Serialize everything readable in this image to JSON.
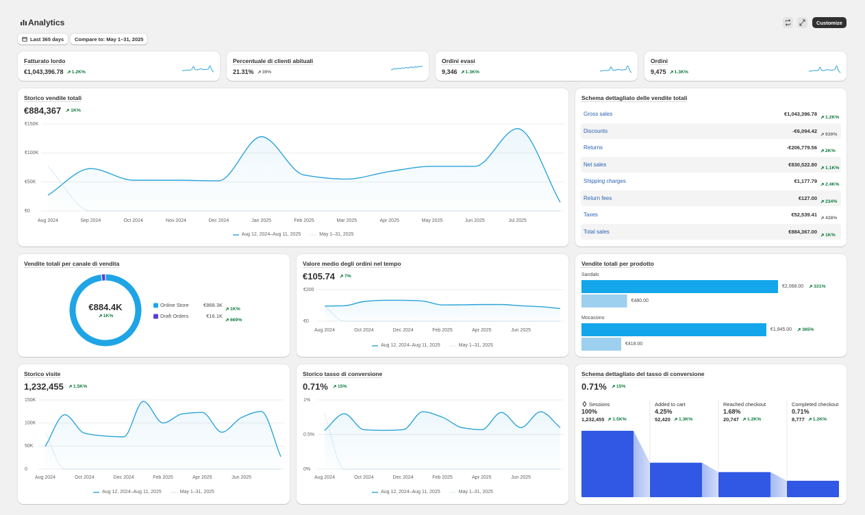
{
  "header": {
    "title": "Analytics",
    "date_range": "Last 365 days",
    "compare": "Compare to: May 1–31, 2025",
    "customize": "Customize"
  },
  "kpis": [
    {
      "title": "Fatturato lordo",
      "value": "€1,043,396.78",
      "change": "1.2K%",
      "change_color": "#0f7b3f",
      "sparkline": [
        3,
        3.1,
        3.3,
        3.4,
        3.3,
        3.5,
        5.4,
        3.6,
        3.5,
        3.8,
        4,
        3.8,
        3.6,
        3.7,
        3.9,
        5.8,
        3.3,
        2.2
      ]
    },
    {
      "title": "Percentuale di clienti abituali",
      "value": "21.31%",
      "change": "39%",
      "change_color": "#6d7175",
      "sparkline": [
        3,
        3.3,
        3.6,
        3.4,
        3.8,
        3.5,
        4,
        3.7,
        4.2,
        3.9,
        4.1,
        4.4,
        4,
        4.6,
        4.2,
        4.8,
        4.5,
        5
      ]
    },
    {
      "title": "Ordini evasi",
      "value": "9,346",
      "change": "1.3K%",
      "change_color": "#0f7b3f",
      "sparkline": [
        2.6,
        2.8,
        3,
        3.1,
        3,
        3.2,
        5,
        3.2,
        3.1,
        3.4,
        3.6,
        3.4,
        3.3,
        3.4,
        3.6,
        5.6,
        3.1,
        1.8
      ]
    },
    {
      "title": "Ordini",
      "value": "9,475",
      "change": "1.3K%",
      "change_color": "#0f7b3f",
      "sparkline": [
        2.6,
        2.8,
        3,
        3.1,
        3,
        3.2,
        5,
        3.2,
        3.1,
        3.4,
        3.6,
        3.4,
        3.3,
        3.4,
        3.6,
        5.8,
        3.1,
        1.8
      ]
    }
  ],
  "sales_history": {
    "type": "line",
    "title": "Storico vendite totali",
    "value": "€884,367",
    "change": "1K%",
    "change_color": "#0f7b3f",
    "categories": [
      "Aug 2024",
      "Sep 2024",
      "Oct 2024",
      "Nov 2024",
      "Dec 2024",
      "Jan 2025",
      "Feb 2025",
      "Mar 2025",
      "Apr 2025",
      "May 2025",
      "Jun 2025",
      "Jul 2025",
      null
    ],
    "series": [
      {
        "name": "Aug 12, 2024–Aug 11, 2025",
        "color": "#2aa3d9",
        "style": "solid",
        "values": [
          27000,
          73000,
          53000,
          53000,
          52000,
          128000,
          62000,
          55000,
          68000,
          77000,
          77000,
          142000,
          15000
        ]
      },
      {
        "name": "May 1–31, 2025",
        "color": "#8fc3e3",
        "style": "dotted",
        "values": [
          77000,
          0,
          0,
          0,
          0,
          0,
          0,
          0,
          0,
          0,
          0,
          0,
          0
        ]
      }
    ],
    "ylim": [
      0,
      150000
    ],
    "yticks": [
      {
        "value": 0,
        "label": "€0"
      },
      {
        "value": 50000,
        "label": "€50K"
      },
      {
        "value": 100000,
        "label": "€100K"
      },
      {
        "value": 150000,
        "label": "€150K"
      }
    ]
  },
  "breakdown": {
    "title": "Schema dettagliato delle vendite totali",
    "rows": [
      {
        "name": "Gross sales",
        "value": "€1,043,396.78",
        "change": "1.2K%",
        "change_color": "#0f7b3f"
      },
      {
        "name": "Discounts",
        "value": "-€6,094.42",
        "change": "939%",
        "change_color": "#6d7175"
      },
      {
        "name": "Returns",
        "value": "-€206,779.56",
        "change": "2K%",
        "change_color": "#0f7b3f"
      },
      {
        "name": "Net sales",
        "value": "€830,522.80",
        "change": "1.1K%",
        "change_color": "#0f7b3f"
      },
      {
        "name": "Shipping charges",
        "value": "€1,177.79",
        "change": "2.4K%",
        "change_color": "#0f7b3f"
      },
      {
        "name": "Return fees",
        "value": "€127.00",
        "change": "234%",
        "change_color": "#0f7b3f"
      },
      {
        "name": "Taxes",
        "value": "€52,539.41",
        "change": "428%",
        "change_color": "#6d7175"
      },
      {
        "name": "Total sales",
        "value": "€884,367.00",
        "change": "1K%",
        "change_color": "#0f7b3f"
      }
    ]
  },
  "channels": {
    "type": "donut",
    "title": "Vendite totali per canale di vendita",
    "total": "€884.4K",
    "change": "1K%",
    "change_color": "#0f7b3f",
    "categories": [
      "Online Store",
      "Draft Orders"
    ],
    "values": [
      868300,
      16100
    ],
    "value_labels": [
      "€868.3K",
      "€16.1K"
    ],
    "changes": [
      "1K%",
      "669%"
    ],
    "change_colors": [
      "#0f7b3f",
      "#0f7b3f"
    ],
    "colors": [
      "#1fa5e6",
      "#5b3fd6"
    ]
  },
  "aov": {
    "type": "line",
    "title": "Valore medio degli ordini nel tempo",
    "value": "€105.74",
    "change": "7%",
    "change_color": "#0f7b3f",
    "categories": [
      "Aug 2024",
      null,
      "Oct 2024",
      null,
      "Dec 2024",
      null,
      "Feb 2025",
      null,
      "Apr 2025",
      null,
      "Jun 2025",
      null,
      null
    ],
    "series": [
      {
        "name": "Aug 12, 2024–Aug 11, 2025",
        "color": "#2aa3d9",
        "style": "solid",
        "values": [
          96,
          98,
          125,
          133,
          133,
          128,
          103,
          104,
          106,
          106,
          98,
          92,
          80
        ]
      },
      {
        "name": "May 1–31, 2025",
        "color": "#8fc3e3",
        "style": "dotted",
        "values": [
          96,
          0,
          0,
          0,
          0,
          0,
          0,
          0,
          0,
          0,
          0,
          0,
          0
        ]
      }
    ],
    "ylim": [
      0,
      200
    ],
    "yticks": [
      {
        "value": 0,
        "label": "€0"
      },
      {
        "value": 200,
        "label": "€200"
      }
    ]
  },
  "products": {
    "type": "bar",
    "title": "Vendite totali per prodotto",
    "categories": [
      "Sandalo",
      "Mocassino"
    ],
    "values": [
      2068,
      1945
    ],
    "value_labels": [
      "€2,068.00",
      "€1,945.00"
    ],
    "changes": [
      "331%",
      "365%"
    ],
    "change_colors": [
      "#0f7b3f",
      "#0f7b3f"
    ],
    "previous_values": [
      480,
      418
    ],
    "previous_value_labels": [
      "€480.00",
      "€418.00"
    ],
    "color": "#13a6ea",
    "previous_color": "#9dd0ef"
  },
  "visits": {
    "type": "line",
    "title": "Storico visite",
    "value": "1,232,455",
    "change": "1.5K%",
    "change_color": "#0f7b3f",
    "categories": [
      "Aug 2024",
      null,
      "Oct 2024",
      null,
      "Dec 2024",
      null,
      "Feb 2025",
      null,
      "Apr 2025",
      null,
      "Jun 2025",
      null,
      null
    ],
    "series": [
      {
        "name": "Aug 12, 2024–Aug 11, 2025",
        "color": "#2aa3d9",
        "style": "solid",
        "values": [
          49000,
          118000,
          78000,
          72000,
          70000,
          147000,
          100000,
          120000,
          123000,
          80000,
          112000,
          125000,
          27000
        ]
      },
      {
        "name": "May 1–31, 2025",
        "color": "#8fc3e3",
        "style": "dotted",
        "values": [
          79000,
          0,
          0,
          0,
          0,
          0,
          0,
          0,
          0,
          0,
          0,
          0,
          0
        ]
      }
    ],
    "ylim": [
      0,
      150000
    ],
    "yticks": [
      0,
      {
        "value": 50000,
        "label": "50K"
      },
      {
        "value": 100000,
        "label": "100K"
      },
      {
        "value": 150000,
        "label": "150K"
      }
    ]
  },
  "conversion": {
    "type": "line",
    "title": "Storico tasso di conversione",
    "value": "0.71%",
    "change": "15%",
    "change_color": "#0f7b3f",
    "categories": [
      "Aug 2024",
      null,
      "Oct 2024",
      null,
      "Dec 2024",
      null,
      "Feb 2025",
      null,
      "Apr 2025",
      null,
      "Jun 2025",
      null,
      null
    ],
    "series": [
      {
        "name": "Aug 12, 2024–Aug 11, 2025",
        "color": "#2aa3d9",
        "style": "solid",
        "values": [
          0.56,
          0.8,
          0.57,
          0.56,
          0.57,
          0.83,
          0.75,
          0.6,
          0.57,
          0.82,
          0.6,
          0.83,
          0.6
        ]
      },
      {
        "name": "May 1–31, 2025",
        "color": "#8fc3e3",
        "style": "dotted",
        "values": [
          0.8,
          0,
          0,
          0,
          0,
          0,
          0,
          0,
          0,
          0,
          0,
          0,
          0
        ]
      }
    ],
    "ylim": [
      0,
      1
    ],
    "yticks": [
      {
        "value": 0,
        "label": "0%"
      },
      {
        "value": 0.5,
        "label": "0.5%"
      },
      {
        "value": 1,
        "label": "1%"
      }
    ]
  },
  "funnel": {
    "type": "funnel",
    "title": "Schema dettagliato del tasso di conversione",
    "value": "0.71%",
    "change": "15%",
    "change_color": "#0f7b3f",
    "categories": [
      "Sessions",
      "Added to cart",
      "Reached checkout",
      "Completed checkout"
    ],
    "values": [
      100,
      4.25,
      1.68,
      0.71
    ],
    "value_labels": [
      "100%",
      "4.25%",
      "1.68%",
      "0.71%"
    ],
    "counts": [
      "1,232,455",
      "52,420",
      "20,747",
      "8,777"
    ],
    "changes": [
      "1.5K%",
      "1.3K%",
      "1.2K%",
      "1.2K%"
    ],
    "change_colors": [
      "#0f7b3f",
      "#0f7b3f",
      "#0f7b3f",
      "#0f7b3f"
    ],
    "color": "#3058e4",
    "connector_color": "#9fb5f2"
  }
}
